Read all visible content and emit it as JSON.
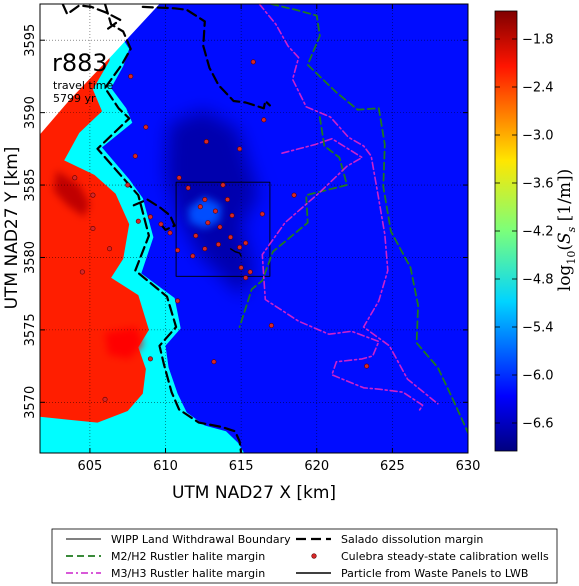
{
  "chart_data": {
    "type": "heatmap",
    "title": "",
    "xlabel": "UTM NAD27 X [km]",
    "ylabel": "UTM NAD27 Y [km]",
    "xlim": [
      601.7,
      630
    ],
    "ylim": [
      3566.5,
      3597.5
    ],
    "xticks": [
      605,
      610,
      615,
      620,
      625,
      630
    ],
    "yticks": [
      3570,
      3575,
      3580,
      3585,
      3590,
      3595
    ],
    "grid": true,
    "colorbar": {
      "label": "log10(Ss [1/m])",
      "range": [
        -6.95,
        -1.45
      ],
      "ticks": [
        -1.8,
        -2.4,
        -3.0,
        -3.6,
        -4.2,
        -4.8,
        -5.4,
        -6.0,
        -6.6
      ],
      "tick_labels": [
        "−1.8",
        "−2.4",
        "−3.0",
        "−3.6",
        "−4.2",
        "−4.8",
        "−5.4",
        "−6.0",
        "−6.6"
      ],
      "colormap": "jet"
    },
    "annotation": {
      "run": "r883",
      "line1": "travel time",
      "line2": "5799 yr"
    },
    "field_levels": {
      "west_high_region": -2.3,
      "peak_region": -1.8,
      "margin_band": -4.9,
      "basin_background": -6.2,
      "basin_low_core": -6.7
    },
    "wipp_boundary": {
      "x": [
        610.7,
        616.9
      ],
      "y": [
        3578.7,
        3585.2
      ]
    },
    "calibration_wells": [
      [
        607.5,
        3585.0
      ],
      [
        608.0,
        3587.0
      ],
      [
        608.2,
        3582.5
      ],
      [
        609.0,
        3582.8
      ],
      [
        610.3,
        3581.7
      ],
      [
        610.8,
        3580.5
      ],
      [
        610.9,
        3585.5
      ],
      [
        611.8,
        3580.1
      ],
      [
        612.0,
        3581.5
      ],
      [
        612.3,
        3583.5
      ],
      [
        612.6,
        3584.0
      ],
      [
        612.6,
        3580.6
      ],
      [
        612.8,
        3582.4
      ],
      [
        613.3,
        3583.2
      ],
      [
        613.6,
        3582.1
      ],
      [
        613.5,
        3580.9
      ],
      [
        613.8,
        3585.0
      ],
      [
        614.1,
        3584.0
      ],
      [
        614.3,
        3581.4
      ],
      [
        614.4,
        3582.9
      ],
      [
        614.9,
        3580.7
      ],
      [
        615.0,
        3579.3
      ],
      [
        615.3,
        3578.6
      ],
      [
        615.6,
        3579.0
      ],
      [
        616.4,
        3583.0
      ],
      [
        614.9,
        3587.5
      ],
      [
        612.7,
        3588.0
      ],
      [
        608.7,
        3589.0
      ],
      [
        607.7,
        3592.5
      ],
      [
        615.8,
        3593.5
      ],
      [
        616.5,
        3589.5
      ],
      [
        605.2,
        3582.0
      ],
      [
        606.3,
        3580.6
      ],
      [
        605.2,
        3584.3
      ],
      [
        606.0,
        3570.2
      ],
      [
        609.0,
        3573.0
      ],
      [
        613.2,
        3572.8
      ],
      [
        610.8,
        3577.0
      ],
      [
        611.5,
        3584.8
      ],
      [
        609.7,
        3582.3
      ],
      [
        615.3,
        3581.0
      ],
      [
        623.3,
        3572.5
      ],
      [
        617.0,
        3575.3
      ],
      [
        618.5,
        3584.3
      ],
      [
        604.0,
        3585.5
      ],
      [
        604.5,
        3579.0
      ]
    ],
    "series": [
      {
        "name": "WIPP Land Withdrawal Boundary",
        "style": "thin-solid",
        "color": "#000000",
        "x": [
          610.7,
          616.9,
          616.9,
          610.7,
          610.7
        ],
        "y": [
          3585.2,
          3585.2,
          3578.7,
          3578.7,
          3585.2
        ]
      },
      {
        "name": "M2/H2 Rustler halite margin",
        "style": "dashed",
        "color": "#1f7a1f",
        "x": [
          617.0,
          618.6,
          620.0,
          620.2,
          619.4,
          621.3,
          622.7,
          624.1,
          624.5,
          624.4,
          624.9,
          626.2,
          626.7,
          626.6,
          628.0,
          629.0,
          630.0
        ],
        "y": [
          3597.5,
          3597.1,
          3596.7,
          3595.3,
          3593.3,
          3591.4,
          3590.2,
          3590.3,
          3587.8,
          3584.9,
          3581.8,
          3579.3,
          3576.7,
          3574.1,
          3572.4,
          3570.2,
          3567.9
        ]
      },
      {
        "name": "M2/H2 Rustler halite margin (inner)",
        "style": "dashed",
        "color": "#1f7a1f",
        "x": [
          620.2,
          620.5,
          621.5,
          622.0,
          619.3,
          619.4,
          617.1,
          616.4,
          615.7,
          614.9
        ],
        "y": [
          3589.7,
          3587.7,
          3586.9,
          3585.0,
          3584.3,
          3582.4,
          3580.4,
          3578.4,
          3577.8,
          3575.2
        ]
      },
      {
        "name": "M3/H3 Rustler halite margin",
        "style": "dash-dot",
        "color": "#cc22cc",
        "x": [
          616.2,
          617.3,
          618.1,
          618.8,
          618.4,
          619.3,
          620.9,
          622.1,
          623.1,
          623.6,
          624.0,
          624.5,
          624.7,
          624.1,
          623.1,
          624.8,
          626.0,
          628.0
        ],
        "y": [
          3597.5,
          3596.1,
          3594.6,
          3593.8,
          3592.3,
          3590.4,
          3589.7,
          3588.3,
          3587.7,
          3587.0,
          3584.6,
          3581.6,
          3579.1,
          3577.0,
          3575.2,
          3573.9,
          3571.6,
          3569.9
        ]
      },
      {
        "name": "M3/H3 Rustler halite margin (inner)",
        "style": "dash-dot",
        "color": "#cc22cc",
        "x": [
          617.7,
          619.9,
          621.0,
          623.0,
          622.0,
          620.2,
          617.9,
          616.4,
          616.6,
          618.8,
          620.8,
          622.3,
          624.1,
          623.7,
          623.0,
          621.3,
          621.0,
          623.1,
          624.2,
          625.7,
          627.0,
          626.7
        ],
        "y": [
          3587.2,
          3587.8,
          3588.2,
          3586.9,
          3586.3,
          3584.5,
          3582.4,
          3580.2,
          3577.1,
          3575.6,
          3574.7,
          3574.9,
          3574.2,
          3573.2,
          3573.0,
          3572.8,
          3571.9,
          3571.0,
          3570.9,
          3570.7,
          3569.8,
          3569.3
        ]
      },
      {
        "name": "Salado dissolution margin",
        "style": "dashed-thick",
        "color": "#000000",
        "x": [
          606.0,
          606.4,
          607.2,
          607.7,
          607.1,
          606.0,
          606.9,
          607.6,
          605.5,
          607.1,
          608.2,
          608.9,
          608.0,
          610.1,
          610.7,
          609.6,
          609.9,
          610.4,
          610.9,
          612.2,
          613.7,
          614.6,
          614.9,
          615.0
        ],
        "y": [
          3597.5,
          3596.1,
          3595.6,
          3594.4,
          3593.3,
          3591.7,
          3590.3,
          3589.6,
          3587.5,
          3585.6,
          3584.3,
          3581.5,
          3579.1,
          3577.3,
          3575.2,
          3573.9,
          3572.6,
          3570.7,
          3569.5,
          3568.6,
          3568.3,
          3568.0,
          3567.3,
          3566.5
        ]
      },
      {
        "name": "Salado dissolution margin (west)",
        "style": "dashed-thick",
        "color": "#000000",
        "x": [
          603.2,
          603.5,
          604.3,
          605.1,
          606.1,
          607.0,
          606.2
        ],
        "y": [
          3597.5,
          3596.8,
          3597.4,
          3597.3,
          3596.9,
          3596.4,
          3595.8
        ]
      },
      {
        "name": "Salado dissolution margin (north)",
        "style": "dashed-thick",
        "color": "#000000",
        "x": [
          608.5,
          610.6,
          611.4,
          612.6,
          612.5,
          612.9,
          613.5,
          614.5,
          615.3,
          616.5,
          616.6,
          616.9
        ],
        "y": [
          3597.3,
          3597.2,
          3597.1,
          3596.3,
          3594.6,
          3593.1,
          3591.9,
          3590.8,
          3590.7,
          3590.3,
          3590.8,
          3590.5
        ]
      },
      {
        "name": "Salado dissolution margin (lobe)",
        "style": "dashed-thick",
        "color": "#000000",
        "x": [
          607.9,
          608.8,
          609.7,
          610.3,
          610.6,
          610.0,
          609.6
        ],
        "y": [
          3583.6,
          3584.0,
          3583.4,
          3582.9,
          3582.2,
          3581.9,
          3582.4
        ]
      },
      {
        "name": "Particle from Waste Panels to LWB",
        "style": "solid",
        "color": "#000000",
        "x": [
          614.3,
          614.6,
          614.9,
          615.0
        ],
        "y": [
          3580.6,
          3580.4,
          3580.3,
          3580.1
        ]
      }
    ],
    "legend": {
      "placement": "bottom",
      "entries": [
        {
          "label": "WIPP Land Withdrawal Boundary",
          "style": "thin-solid",
          "color": "#000000"
        },
        {
          "label": "Salado dissolution margin",
          "style": "dashed-thick",
          "color": "#000000"
        },
        {
          "label": "M2/H2 Rustler halite margin",
          "style": "dashed",
          "color": "#1f7a1f"
        },
        {
          "label": "Culebra steady-state calibration wells",
          "style": "dot",
          "color": "#d62728"
        },
        {
          "label": "M3/H3 Rustler halite margin",
          "style": "dash-dot",
          "color": "#cc22cc"
        },
        {
          "label": "Particle from Waste Panels to LWB",
          "style": "solid",
          "color": "#000000"
        }
      ]
    }
  }
}
